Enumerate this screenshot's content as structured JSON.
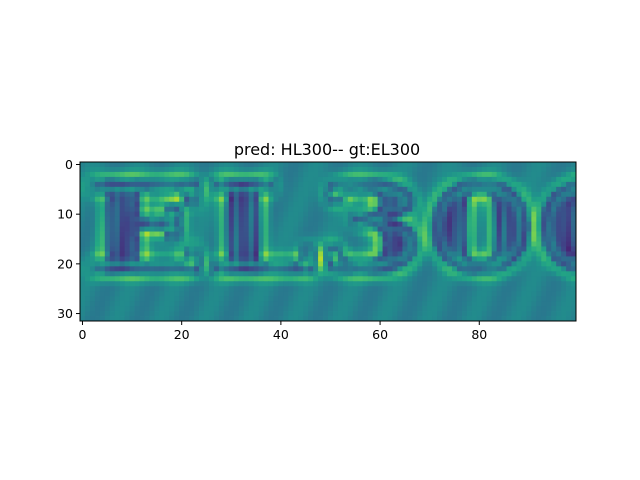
{
  "chart_data": {
    "type": "heatmap",
    "title": "pred: HL300-- gt:EL300",
    "image_shape": [
      32,
      100
    ],
    "colormap": "viridis",
    "value_range": [
      0,
      1
    ],
    "description_content": "EL300",
    "xlim": [
      -0.5,
      99.5
    ],
    "ylim": [
      31.5,
      -0.5
    ],
    "x_ticks": [
      0,
      20,
      40,
      60,
      80
    ],
    "y_ticks": [
      0,
      10,
      20,
      30
    ],
    "x_tick_labels": [
      "0",
      "20",
      "40",
      "60",
      "80"
    ],
    "y_tick_labels": [
      "0",
      "10",
      "20",
      "30"
    ],
    "grid": false,
    "legend": "none"
  }
}
